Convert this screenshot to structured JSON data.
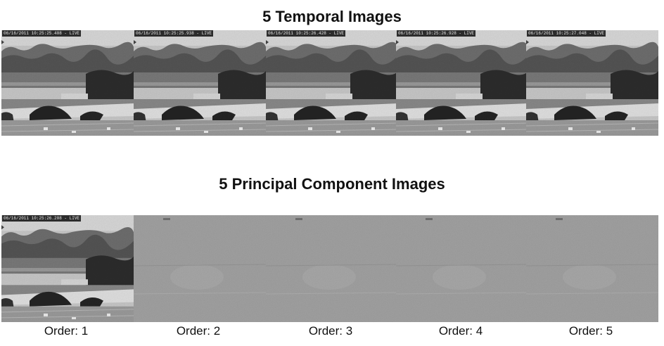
{
  "temporal_title": "5 Temporal Images",
  "pc_title": "5 Principal Component Images",
  "temporal_images": [
    {
      "timestamp": "06/16/2011 10:25:25.408 - LIVE"
    },
    {
      "timestamp": "06/16/2011 10:25:25.938 - LIVE"
    },
    {
      "timestamp": "06/16/2011 10:25:26.428 - LIVE"
    },
    {
      "timestamp": "06/16/2011 10:25:26.928 - LIVE"
    },
    {
      "timestamp": "06/16/2011 10:25:27.048 - LIVE"
    }
  ],
  "pc_images": [
    {
      "timestamp": "06/16/2011 10:25:26.208 - LIVE",
      "caption": "Order: 1"
    },
    {
      "caption": "Order: 2"
    },
    {
      "caption": "Order: 3"
    },
    {
      "caption": "Order: 4"
    },
    {
      "caption": "Order: 5"
    }
  ]
}
